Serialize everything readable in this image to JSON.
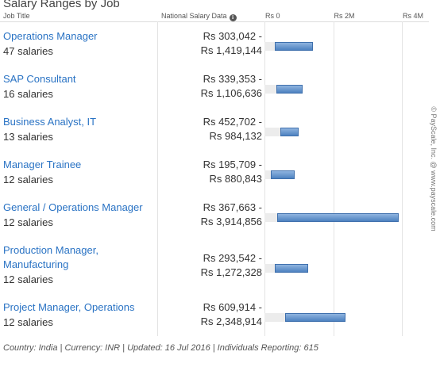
{
  "title": "Salary Ranges by Job",
  "headers": {
    "job_title": "Job Title",
    "national_salary_data": "National Salary Data",
    "info_icon": "info-icon"
  },
  "axis": {
    "min": 0,
    "max": 4000000,
    "ticks": [
      {
        "label": "Rs 0",
        "value": 0
      },
      {
        "label": "Rs 2M",
        "value": 2000000
      },
      {
        "label": "Rs 4M",
        "value": 4000000
      }
    ]
  },
  "jobs": [
    {
      "title_lines": [
        "Operations Manager"
      ],
      "count": "47 salaries",
      "low": "Rs 303,042 -",
      "high": "Rs 1,419,144",
      "low_value": 303042,
      "high_value": 1419144
    },
    {
      "title_lines": [
        "SAP Consultant"
      ],
      "count": "16 salaries",
      "low": "Rs 339,353 -",
      "high": "Rs 1,106,636",
      "low_value": 339353,
      "high_value": 1106636
    },
    {
      "title_lines": [
        "Business Analyst, IT"
      ],
      "count": "13 salaries",
      "low": "Rs 452,702 -",
      "high": "Rs 984,132",
      "low_value": 452702,
      "high_value": 984132
    },
    {
      "title_lines": [
        "Manager Trainee"
      ],
      "count": "12 salaries",
      "low": "Rs 195,709 -",
      "high": "Rs 880,843",
      "low_value": 195709,
      "high_value": 880843
    },
    {
      "title_lines": [
        "General / Operations Manager"
      ],
      "count": "12 salaries",
      "low": "Rs 367,663 -",
      "high": "Rs 3,914,856",
      "low_value": 367663,
      "high_value": 3914856
    },
    {
      "title_lines": [
        "Production Manager,",
        "Manufacturing"
      ],
      "count": "12 salaries",
      "low": "Rs 293,542 -",
      "high": "Rs 1,272,328",
      "low_value": 293542,
      "high_value": 1272328
    },
    {
      "title_lines": [
        "Project Manager, Operations"
      ],
      "count": "12 salaries",
      "low": "Rs 609,914 -",
      "high": "Rs 2,348,914",
      "low_value": 609914,
      "high_value": 2348914
    }
  ],
  "footer": "Country: India | Currency: INR | Updated: 16 Jul 2016 | Individuals Reporting: 615",
  "credit": "© PayScale, Inc. @ www.payscale.com",
  "colors": {
    "link": "#2a73c4",
    "bar": "#6b9bd2",
    "track": "#ececec"
  }
}
